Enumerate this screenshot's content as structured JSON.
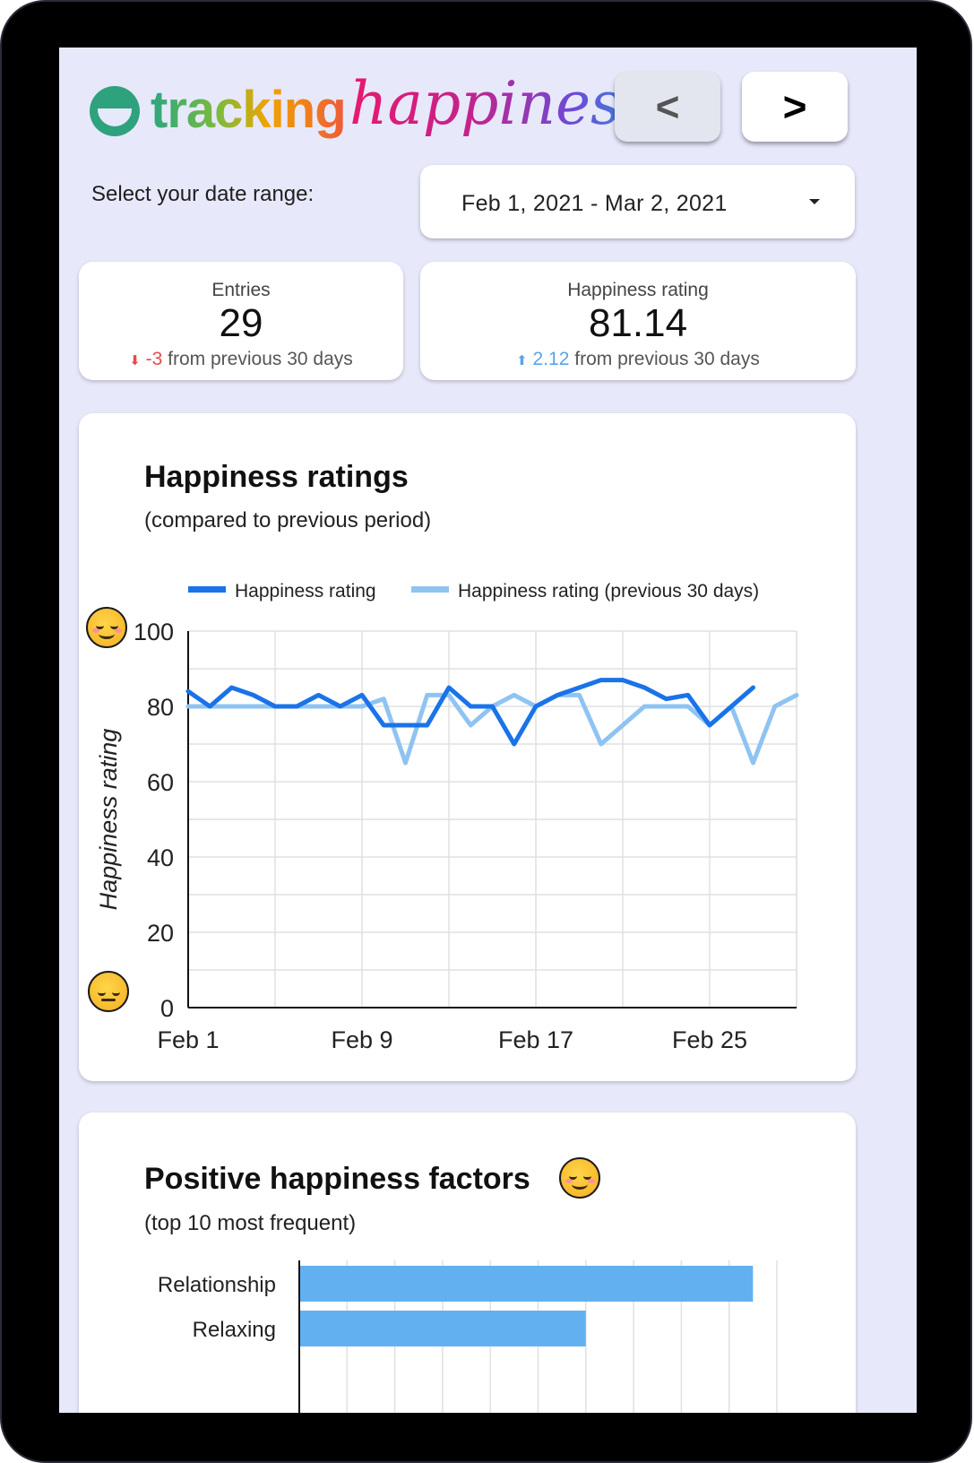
{
  "app": {
    "logo_word1": "tracking",
    "logo_word2": "happiness"
  },
  "nav": {
    "prev_label": "<",
    "next_label": ">"
  },
  "date_range": {
    "label": "Select your date range:",
    "value": "Feb 1, 2021 - Mar 2, 2021"
  },
  "kpis": {
    "entries": {
      "label": "Entries",
      "value": "29",
      "delta": "-3",
      "delta_text": " from previous 30 days",
      "arrow": "⬇"
    },
    "happiness": {
      "label": "Happiness rating",
      "value": "81.14",
      "delta": "2.12",
      "delta_text": " from previous 30 days",
      "arrow": "⬆"
    }
  },
  "happiness_chart": {
    "title": "Happiness ratings",
    "subtitle": "(compared to previous period)"
  },
  "factors_chart": {
    "title": "Positive happiness factors",
    "subtitle": "(top 10 most frequent)"
  },
  "colors": {
    "current": "#1a73e8",
    "previous": "#8fc3f2",
    "bar": "#63b0f0",
    "negative": "#e64a4a",
    "positive": "#5aa3e8"
  },
  "chart_data": [
    {
      "type": "line",
      "title": "Happiness ratings",
      "ylabel": "Happiness rating",
      "xlabel": "",
      "ylim": [
        0,
        100
      ],
      "yticks": [
        "0",
        "20",
        "40",
        "60",
        "80",
        "100"
      ],
      "xtick_labels": [
        {
          "day": 1,
          "label": "Feb 1"
        },
        {
          "day": 9,
          "label": "Feb 9"
        },
        {
          "day": 17,
          "label": "Feb 17"
        },
        {
          "day": 25,
          "label": "Feb 25"
        }
      ],
      "grid": true,
      "legend_position": "top",
      "series": [
        {
          "name": "Happiness rating",
          "days": [
            1,
            2,
            3,
            4,
            5,
            6,
            7,
            8,
            9,
            10,
            11,
            12,
            13,
            14,
            15,
            16,
            17,
            18,
            19,
            20,
            21,
            22,
            23,
            24,
            25,
            26,
            27
          ],
          "values": [
            84,
            80,
            85,
            83,
            80,
            80,
            83,
            80,
            83,
            75,
            75,
            75,
            85,
            80,
            80,
            70,
            80,
            83,
            85,
            87,
            87,
            85,
            82,
            83,
            75,
            80,
            85
          ]
        },
        {
          "name": "Happiness rating (previous 30 days)",
          "days": [
            1,
            2,
            3,
            4,
            5,
            6,
            7,
            8,
            9,
            10,
            11,
            12,
            13,
            14,
            15,
            16,
            17,
            18,
            19,
            20,
            21,
            22,
            23,
            24,
            25,
            26,
            27,
            28,
            29
          ],
          "values": [
            80,
            80,
            80,
            80,
            80,
            80,
            80,
            80,
            80,
            82,
            65,
            83,
            83,
            75,
            80,
            83,
            80,
            83,
            83,
            70,
            75,
            80,
            80,
            80,
            75,
            80,
            65,
            80,
            83
          ]
        }
      ]
    },
    {
      "type": "bar",
      "orientation": "horizontal",
      "title": "Positive happiness factors",
      "categories": [
        "Relationship",
        "Relaxing"
      ],
      "values": [
        19,
        12
      ],
      "xlim": [
        0,
        20
      ],
      "grid": true
    }
  ]
}
